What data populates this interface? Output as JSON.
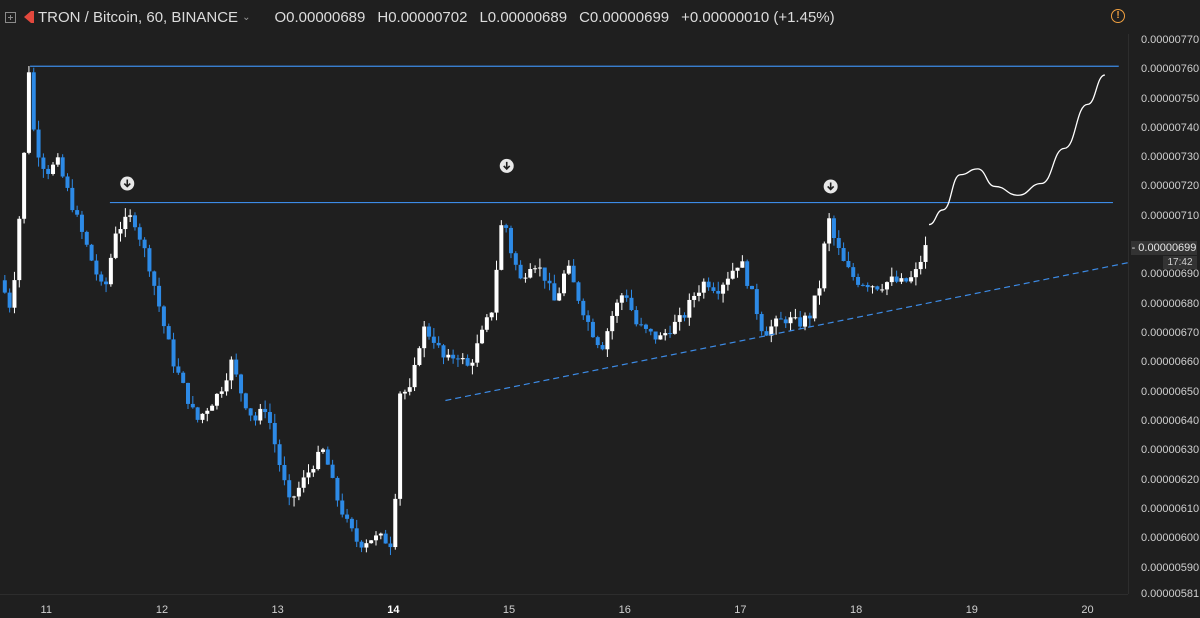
{
  "header": {
    "symbol": "TRON / Bitcoin, 60, BINANCE",
    "open": "O0.00000689",
    "high": "H0.00000702",
    "low": "L0.00000689",
    "close": "C0.00000699",
    "change": "+0.00000010 (+1.45%)",
    "alert_icon": "!"
  },
  "colors": {
    "background": "#1f1f1f",
    "up": "#ffffff",
    "down": "#2d8ae6",
    "line": "#3c8be6",
    "curve": "#ffffff"
  },
  "chart_data": {
    "type": "candlestick",
    "title": "",
    "yunit": "BTC",
    "ylim": [
      5.81e-06,
      7.72e-06
    ],
    "xlim": [
      10.6,
      20.35
    ],
    "y_ticks": [
      "0.00000770",
      "0.00000760",
      "0.00000750",
      "0.00000740",
      "0.00000730",
      "0.00000720",
      "0.00000710",
      "0.00000690",
      "0.00000680",
      "0.00000670",
      "0.00000660",
      "0.00000650",
      "0.00000640",
      "0.00000630",
      "0.00000620",
      "0.00000610",
      "0.00000600",
      "0.00000590",
      "0.00000581"
    ],
    "y_tick_values": [
      770,
      760,
      750,
      740,
      730,
      720,
      710,
      690,
      680,
      670,
      660,
      650,
      640,
      630,
      620,
      610,
      600,
      590,
      581
    ],
    "x_ticks": [
      {
        "label": "11",
        "value": 11
      },
      {
        "label": "12",
        "value": 12
      },
      {
        "label": "13",
        "value": 13
      },
      {
        "label": "14",
        "value": 14,
        "bold": true
      },
      {
        "label": "15",
        "value": 15
      },
      {
        "label": "16",
        "value": 16
      },
      {
        "label": "17",
        "value": 17
      },
      {
        "label": "18",
        "value": 18
      },
      {
        "label": "19",
        "value": 19
      },
      {
        "label": "20",
        "value": 20
      }
    ],
    "last_price": "0.00000699",
    "last_price_value": 699,
    "countdown": "17:42",
    "anchors": [
      [
        10.6,
        688
      ],
      [
        10.7,
        678
      ],
      [
        10.8,
        725
      ],
      [
        10.85,
        760
      ],
      [
        10.9,
        735
      ],
      [
        11.0,
        725
      ],
      [
        11.1,
        728
      ],
      [
        11.3,
        705
      ],
      [
        11.5,
        683
      ],
      [
        11.6,
        705
      ],
      [
        11.75,
        710
      ],
      [
        11.9,
        692
      ],
      [
        12.0,
        675
      ],
      [
        12.1,
        660
      ],
      [
        12.2,
        650
      ],
      [
        12.3,
        640
      ],
      [
        12.4,
        645
      ],
      [
        12.5,
        650
      ],
      [
        12.6,
        660
      ],
      [
        12.7,
        648
      ],
      [
        12.8,
        640
      ],
      [
        12.9,
        645
      ],
      [
        13.0,
        628
      ],
      [
        13.1,
        612
      ],
      [
        13.2,
        618
      ],
      [
        13.3,
        625
      ],
      [
        13.4,
        630
      ],
      [
        13.5,
        615
      ],
      [
        13.6,
        605
      ],
      [
        13.7,
        598
      ],
      [
        13.8,
        600
      ],
      [
        13.9,
        600
      ],
      [
        14.0,
        598
      ],
      [
        14.05,
        650
      ],
      [
        14.15,
        650
      ],
      [
        14.25,
        672
      ],
      [
        14.35,
        668
      ],
      [
        14.45,
        660
      ],
      [
        14.55,
        663
      ],
      [
        14.65,
        658
      ],
      [
        14.75,
        668
      ],
      [
        14.85,
        678
      ],
      [
        14.95,
        712
      ],
      [
        15.0,
        700
      ],
      [
        15.1,
        688
      ],
      [
        15.2,
        695
      ],
      [
        15.3,
        690
      ],
      [
        15.4,
        680
      ],
      [
        15.5,
        693
      ],
      [
        15.6,
        682
      ],
      [
        15.7,
        672
      ],
      [
        15.8,
        665
      ],
      [
        15.9,
        677
      ],
      [
        16.0,
        685
      ],
      [
        16.1,
        673
      ],
      [
        16.2,
        670
      ],
      [
        16.3,
        668
      ],
      [
        16.4,
        672
      ],
      [
        16.5,
        675
      ],
      [
        16.6,
        683
      ],
      [
        16.7,
        688
      ],
      [
        16.8,
        685
      ],
      [
        16.9,
        690
      ],
      [
        17.0,
        695
      ],
      [
        17.1,
        683
      ],
      [
        17.2,
        670
      ],
      [
        17.3,
        673
      ],
      [
        17.4,
        675
      ],
      [
        17.5,
        673
      ],
      [
        17.6,
        676
      ],
      [
        17.7,
        688
      ],
      [
        17.75,
        711
      ],
      [
        17.8,
        703
      ],
      [
        17.9,
        693
      ],
      [
        18.0,
        688
      ],
      [
        18.1,
        687
      ],
      [
        18.2,
        686
      ],
      [
        18.3,
        688
      ],
      [
        18.4,
        687
      ],
      [
        18.5,
        689
      ],
      [
        18.6,
        699
      ]
    ],
    "resistance_top": {
      "x1": 10.86,
      "x2": 20.27,
      "y": 761
    },
    "resistance_mid": {
      "x1": 11.55,
      "x2": 20.22,
      "y": 714.5
    },
    "support_dashed": {
      "x1": 14.45,
      "x2": 20.35,
      "y1": 647,
      "y2": 694
    },
    "markers": [
      {
        "x": 11.7,
        "y": 721
      },
      {
        "x": 14.98,
        "y": 727
      },
      {
        "x": 17.78,
        "y": 720
      }
    ],
    "projection": [
      [
        18.63,
        707
      ],
      [
        18.75,
        712
      ],
      [
        18.9,
        724
      ],
      [
        19.05,
        726
      ],
      [
        19.2,
        720
      ],
      [
        19.4,
        717
      ],
      [
        19.6,
        721
      ],
      [
        19.8,
        733
      ],
      [
        20.0,
        748
      ],
      [
        20.15,
        758
      ]
    ]
  }
}
